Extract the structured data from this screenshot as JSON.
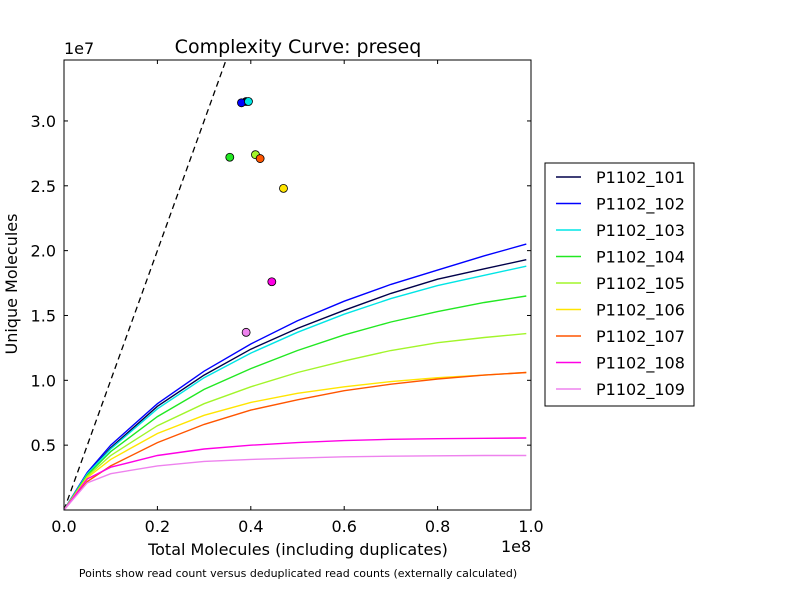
{
  "chart_data": {
    "type": "line",
    "title": "Complexity Curve: preseq",
    "xlabel": "Total Molecules (including duplicates)",
    "ylabel": "Unique Molecules",
    "x_exponent_label": "1e8",
    "y_exponent_label": "1e7",
    "xlim": [
      0,
      1.0
    ],
    "ylim": [
      0,
      3.47
    ],
    "x_ticks": [
      0.0,
      0.2,
      0.4,
      0.6,
      0.8,
      1.0
    ],
    "x_tick_labels": [
      "0.0",
      "0.2",
      "0.4",
      "0.6",
      "0.8",
      "1.0"
    ],
    "y_ticks": [
      0.5,
      1.0,
      1.5,
      2.0,
      2.5,
      3.0
    ],
    "y_tick_labels": [
      "0.5",
      "1.0",
      "1.5",
      "2.0",
      "2.5",
      "3.0"
    ],
    "grid": false,
    "legend_position": "right",
    "footnote": "Points show read count versus deduplicated read counts (externally calculated)",
    "reference_line": {
      "style": "dashed",
      "color": "#000000",
      "x": [
        0,
        0.347
      ],
      "y": [
        0,
        3.47
      ]
    },
    "series": [
      {
        "name": "P1102_101",
        "color": "#00004a",
        "x": [
          0,
          0.05,
          0.1,
          0.2,
          0.3,
          0.4,
          0.5,
          0.6,
          0.7,
          0.8,
          0.9,
          0.99
        ],
        "y": [
          0,
          0.28,
          0.48,
          0.8,
          1.04,
          1.24,
          1.4,
          1.54,
          1.67,
          1.78,
          1.86,
          1.93
        ],
        "point": {
          "x": 0.39,
          "y": 3.15
        }
      },
      {
        "name": "P1102_102",
        "color": "#0000ff",
        "x": [
          0,
          0.05,
          0.1,
          0.2,
          0.3,
          0.4,
          0.5,
          0.6,
          0.7,
          0.8,
          0.9,
          0.99
        ],
        "y": [
          0,
          0.29,
          0.5,
          0.82,
          1.07,
          1.28,
          1.46,
          1.61,
          1.74,
          1.85,
          1.96,
          2.05
        ],
        "point": {
          "x": 0.38,
          "y": 3.14
        }
      },
      {
        "name": "P1102_103",
        "color": "#00e5e5",
        "x": [
          0,
          0.05,
          0.1,
          0.2,
          0.3,
          0.4,
          0.5,
          0.6,
          0.7,
          0.8,
          0.9,
          0.99
        ],
        "y": [
          0,
          0.28,
          0.47,
          0.78,
          1.02,
          1.21,
          1.37,
          1.51,
          1.63,
          1.73,
          1.81,
          1.88
        ],
        "point": {
          "x": 0.395,
          "y": 3.15
        }
      },
      {
        "name": "P1102_104",
        "color": "#22e822",
        "x": [
          0,
          0.05,
          0.1,
          0.2,
          0.3,
          0.4,
          0.5,
          0.6,
          0.7,
          0.8,
          0.9,
          0.99
        ],
        "y": [
          0,
          0.27,
          0.45,
          0.72,
          0.93,
          1.09,
          1.23,
          1.35,
          1.45,
          1.53,
          1.6,
          1.65
        ],
        "point": {
          "x": 0.355,
          "y": 2.72
        }
      },
      {
        "name": "P1102_105",
        "color": "#a2f52a",
        "x": [
          0,
          0.05,
          0.1,
          0.2,
          0.3,
          0.4,
          0.5,
          0.6,
          0.7,
          0.8,
          0.9,
          0.99
        ],
        "y": [
          0,
          0.26,
          0.42,
          0.65,
          0.82,
          0.95,
          1.06,
          1.15,
          1.23,
          1.29,
          1.33,
          1.36
        ],
        "point": {
          "x": 0.41,
          "y": 2.74
        }
      },
      {
        "name": "P1102_106",
        "color": "#ffe500",
        "x": [
          0,
          0.05,
          0.1,
          0.2,
          0.3,
          0.4,
          0.5,
          0.6,
          0.7,
          0.8,
          0.9,
          0.99
        ],
        "y": [
          0,
          0.25,
          0.39,
          0.59,
          0.73,
          0.83,
          0.9,
          0.95,
          0.99,
          1.02,
          1.04,
          1.06
        ],
        "point": {
          "x": 0.47,
          "y": 2.48
        }
      },
      {
        "name": "P1102_107",
        "color": "#ff5500",
        "x": [
          0,
          0.05,
          0.1,
          0.2,
          0.3,
          0.4,
          0.5,
          0.6,
          0.7,
          0.8,
          0.9,
          0.99
        ],
        "y": [
          0,
          0.22,
          0.34,
          0.52,
          0.66,
          0.77,
          0.85,
          0.92,
          0.97,
          1.01,
          1.04,
          1.06
        ],
        "point": {
          "x": 0.42,
          "y": 2.71
        }
      },
      {
        "name": "P1102_108",
        "color": "#ff00e5",
        "x": [
          0,
          0.05,
          0.1,
          0.2,
          0.3,
          0.4,
          0.5,
          0.6,
          0.7,
          0.8,
          0.9,
          0.99
        ],
        "y": [
          0,
          0.24,
          0.33,
          0.42,
          0.47,
          0.5,
          0.52,
          0.535,
          0.545,
          0.55,
          0.553,
          0.555
        ],
        "point": {
          "x": 0.445,
          "y": 1.76
        }
      },
      {
        "name": "P1102_109",
        "color": "#ee82ee",
        "x": [
          0,
          0.05,
          0.1,
          0.2,
          0.3,
          0.4,
          0.5,
          0.6,
          0.7,
          0.8,
          0.9,
          0.99
        ],
        "y": [
          0,
          0.21,
          0.28,
          0.34,
          0.375,
          0.39,
          0.4,
          0.41,
          0.415,
          0.418,
          0.42,
          0.42
        ],
        "point": {
          "x": 0.39,
          "y": 1.37
        }
      }
    ]
  }
}
